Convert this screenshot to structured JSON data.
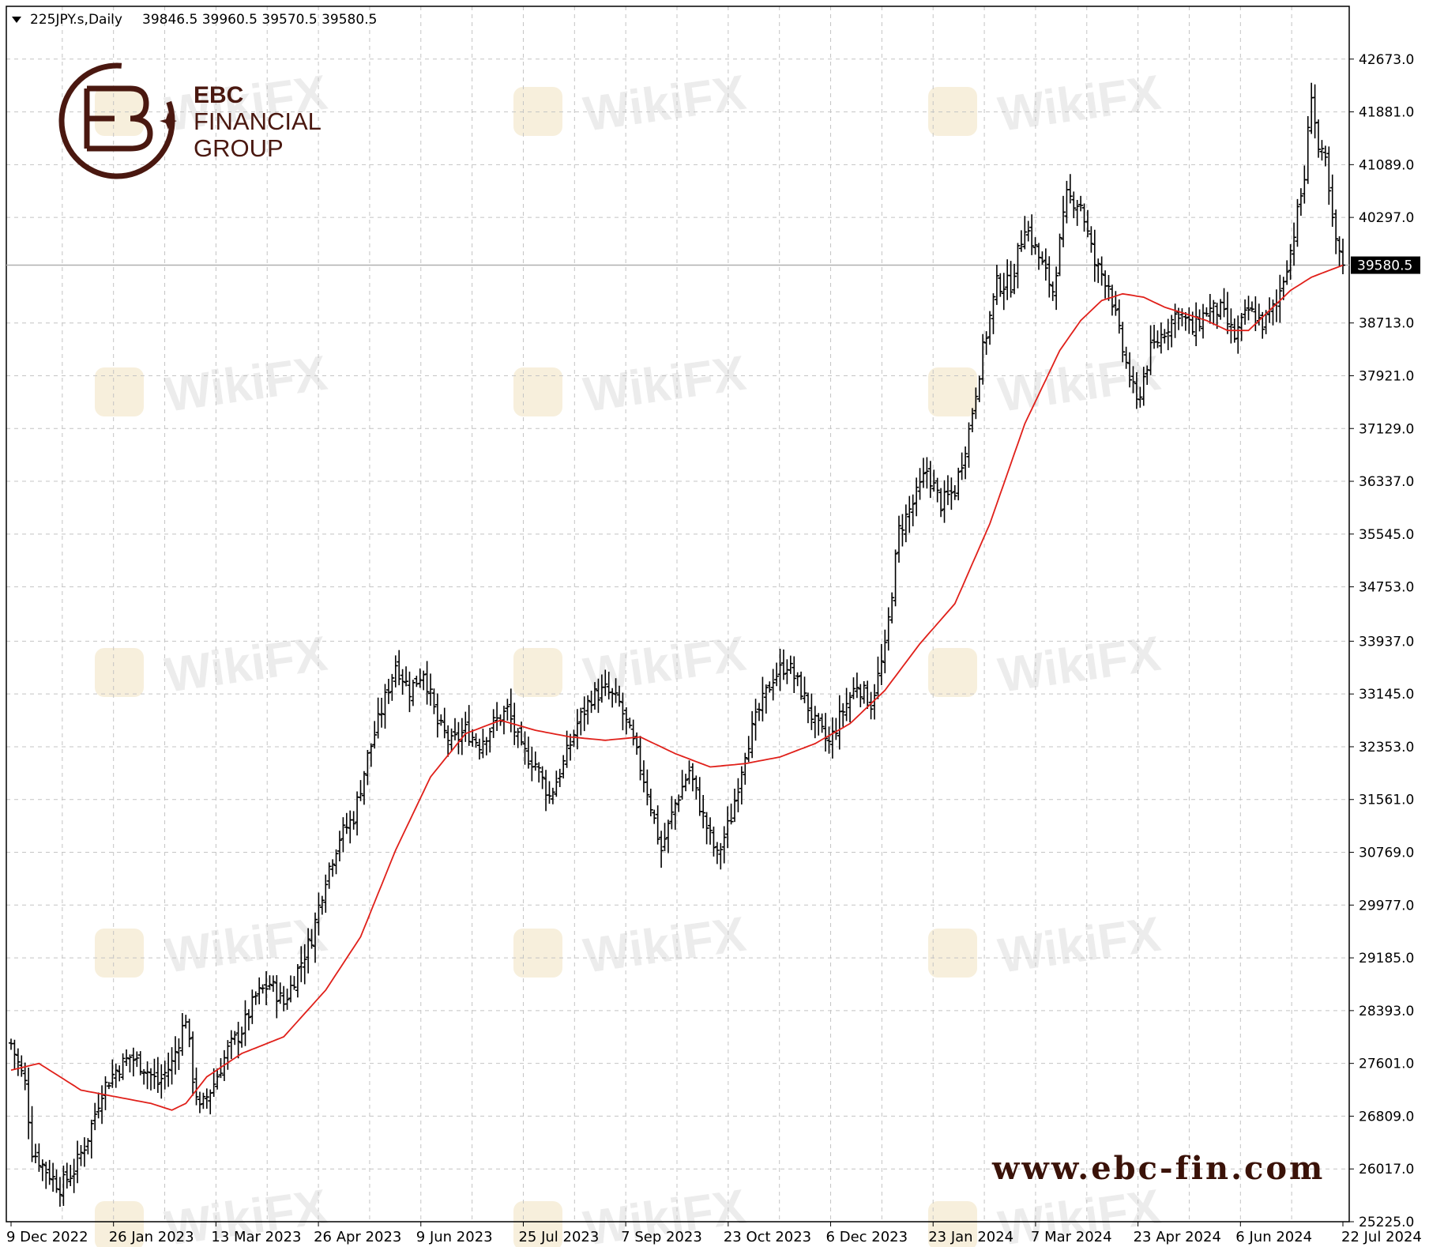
{
  "header": {
    "symbol_caption": "225JPY.s,Daily",
    "ohlc": "39846.5 39960.5 39570.5 39580.5"
  },
  "logo": {
    "line1": "EBC",
    "line2": "FINANCIAL",
    "line3": "GROUP",
    "color": "#4a1810"
  },
  "watermark": {
    "text": "WikiFX"
  },
  "site_url": "www.ebc-fin.com",
  "current_price_label": "39580.5",
  "colors": {
    "ma_line": "#e0201a",
    "bars": "#000000",
    "grid": "#c4c4c4",
    "price_tag_bg": "#000000"
  },
  "chart_data": {
    "type": "ohlc-bar",
    "symbol": "225JPY.s",
    "timeframe": "Daily",
    "grid": true,
    "ylim": [
      25225.0,
      43465.0
    ],
    "y_ticks": [
      "42673.0",
      "41881.0",
      "41089.0",
      "40297.0",
      "38713.0",
      "37921.0",
      "37129.0",
      "36337.0",
      "35545.0",
      "34753.0",
      "33937.0",
      "33145.0",
      "32353.0",
      "31561.0",
      "30769.0",
      "29977.0",
      "29185.0",
      "28393.0",
      "27601.0",
      "26809.0",
      "26017.0",
      "25225.0"
    ],
    "x_labels": [
      "9 Dec 2022",
      "26 Jan 2023",
      "13 Mar 2023",
      "26 Apr 2023",
      "9 Jun 2023",
      "25 Jul 2023",
      "7 Sep 2023",
      "23 Oct 2023",
      "6 Dec 2023",
      "23 Jan 2024",
      "7 Mar 2024",
      "23 Apr 2024",
      "6 Jun 2024",
      "22 Jul 2024"
    ],
    "last_close": 39580.5,
    "close_anchors": [
      [
        0,
        27900
      ],
      [
        4,
        27300
      ],
      [
        6,
        26300
      ],
      [
        10,
        26000
      ],
      [
        14,
        25750
      ],
      [
        18,
        26000
      ],
      [
        22,
        26500
      ],
      [
        26,
        27200
      ],
      [
        30,
        27500
      ],
      [
        34,
        27700
      ],
      [
        38,
        27550
      ],
      [
        42,
        27300
      ],
      [
        46,
        27600
      ],
      [
        50,
        28300
      ],
      [
        52,
        27400
      ],
      [
        54,
        26900
      ],
      [
        58,
        27300
      ],
      [
        62,
        27800
      ],
      [
        66,
        28100
      ],
      [
        70,
        28600
      ],
      [
        74,
        28800
      ],
      [
        78,
        28500
      ],
      [
        82,
        29000
      ],
      [
        86,
        29500
      ],
      [
        90,
        30400
      ],
      [
        94,
        31000
      ],
      [
        98,
        31300
      ],
      [
        102,
        32200
      ],
      [
        106,
        32900
      ],
      [
        110,
        33600
      ],
      [
        114,
        33200
      ],
      [
        118,
        33500
      ],
      [
        122,
        32700
      ],
      [
        126,
        32400
      ],
      [
        130,
        32600
      ],
      [
        134,
        32400
      ],
      [
        138,
        32700
      ],
      [
        142,
        32900
      ],
      [
        146,
        32300
      ],
      [
        150,
        32100
      ],
      [
        154,
        31600
      ],
      [
        158,
        32100
      ],
      [
        162,
        32700
      ],
      [
        166,
        33100
      ],
      [
        170,
        33200
      ],
      [
        174,
        33000
      ],
      [
        178,
        32400
      ],
      [
        182,
        31700
      ],
      [
        186,
        30800
      ],
      [
        190,
        31500
      ],
      [
        194,
        32000
      ],
      [
        198,
        31300
      ],
      [
        202,
        30700
      ],
      [
        206,
        31300
      ],
      [
        210,
        32300
      ],
      [
        214,
        32900
      ],
      [
        218,
        33400
      ],
      [
        222,
        33600
      ],
      [
        226,
        33200
      ],
      [
        230,
        32700
      ],
      [
        234,
        32400
      ],
      [
        238,
        32900
      ],
      [
        242,
        33300
      ],
      [
        246,
        33000
      ],
      [
        250,
        33800
      ],
      [
        254,
        35600
      ],
      [
        258,
        36000
      ],
      [
        262,
        36500
      ],
      [
        266,
        36000
      ],
      [
        270,
        36200
      ],
      [
        274,
        37100
      ],
      [
        278,
        38300
      ],
      [
        282,
        39300
      ],
      [
        286,
        39300
      ],
      [
        290,
        40200
      ],
      [
        294,
        39700
      ],
      [
        298,
        39200
      ],
      [
        302,
        40600
      ],
      [
        306,
        40500
      ],
      [
        310,
        39600
      ],
      [
        314,
        39300
      ],
      [
        318,
        38300
      ],
      [
        322,
        37500
      ],
      [
        326,
        38300
      ],
      [
        330,
        38600
      ],
      [
        334,
        38900
      ],
      [
        338,
        38600
      ],
      [
        342,
        38900
      ],
      [
        346,
        38900
      ],
      [
        350,
        38500
      ],
      [
        354,
        38900
      ],
      [
        358,
        38700
      ],
      [
        362,
        39000
      ],
      [
        366,
        39800
      ],
      [
        370,
        40900
      ],
      [
        372,
        42200
      ],
      [
        374,
        41300
      ],
      [
        376,
        41100
      ],
      [
        378,
        40200
      ],
      [
        380,
        39700
      ],
      [
        381,
        39580.5
      ]
    ],
    "moving_average": {
      "color": "#e0201a",
      "anchors": [
        [
          0,
          27500
        ],
        [
          8,
          27600
        ],
        [
          20,
          27200
        ],
        [
          30,
          27100
        ],
        [
          40,
          27000
        ],
        [
          46,
          26900
        ],
        [
          50,
          27000
        ],
        [
          56,
          27400
        ],
        [
          66,
          27750
        ],
        [
          78,
          28000
        ],
        [
          90,
          28700
        ],
        [
          100,
          29500
        ],
        [
          110,
          30800
        ],
        [
          120,
          31900
        ],
        [
          130,
          32550
        ],
        [
          140,
          32750
        ],
        [
          150,
          32600
        ],
        [
          160,
          32500
        ],
        [
          170,
          32450
        ],
        [
          180,
          32500
        ],
        [
          190,
          32250
        ],
        [
          200,
          32050
        ],
        [
          210,
          32100
        ],
        [
          220,
          32200
        ],
        [
          230,
          32400
        ],
        [
          240,
          32700
        ],
        [
          250,
          33200
        ],
        [
          260,
          33900
        ],
        [
          270,
          34500
        ],
        [
          280,
          35700
        ],
        [
          290,
          37200
        ],
        [
          300,
          38300
        ],
        [
          306,
          38750
        ],
        [
          312,
          39050
        ],
        [
          318,
          39150
        ],
        [
          324,
          39100
        ],
        [
          330,
          38950
        ],
        [
          336,
          38850
        ],
        [
          342,
          38750
        ],
        [
          348,
          38600
        ],
        [
          354,
          38600
        ],
        [
          360,
          38900
        ],
        [
          366,
          39200
        ],
        [
          372,
          39400
        ],
        [
          381,
          39580
        ]
      ]
    }
  }
}
